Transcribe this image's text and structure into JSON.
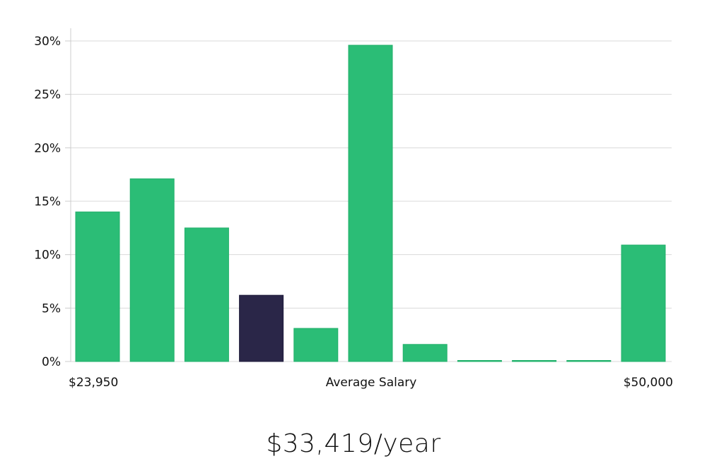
{
  "chart_data": {
    "type": "bar",
    "title": "",
    "xlabel": "Average Salary",
    "ylabel": "",
    "ylim": [
      0,
      30
    ],
    "yticks": [
      0,
      5,
      10,
      15,
      20,
      25,
      30
    ],
    "ytick_labels": [
      "0%",
      "5%",
      "10%",
      "15%",
      "20%",
      "25%",
      "30%"
    ],
    "x_min_label": "$23,950",
    "x_max_label": "$50,000",
    "grid": true,
    "values": [
      14.0,
      17.1,
      12.5,
      6.2,
      3.1,
      29.6,
      1.6,
      0.05,
      0.05,
      0.05,
      10.9
    ],
    "highlight_index": 3,
    "colors": {
      "bar": "#2bbd76",
      "highlight": "#2a2648",
      "grid": "#d9d9d9",
      "axis": "#cccccc"
    }
  },
  "summary": {
    "salary_text": "$33,419/year"
  }
}
